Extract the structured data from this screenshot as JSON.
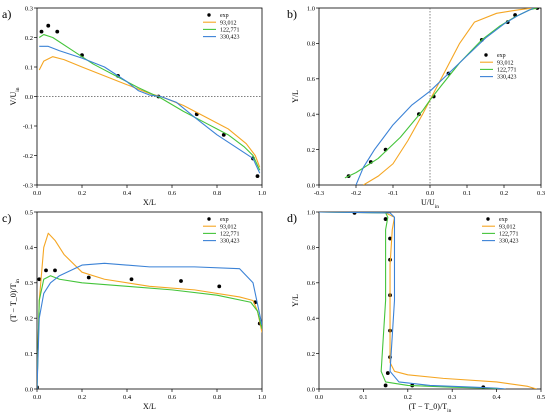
{
  "colors": {
    "exp": "#000000",
    "93,012": "#f5a623",
    "122,771": "#44c43a",
    "330,423": "#3b82d6"
  },
  "chart_data": [
    {
      "panel": "a)",
      "type": "line",
      "xlabel": "X/L",
      "ylabel": "V/U_in",
      "xlim": [
        0,
        1.0
      ],
      "ylim": [
        -0.3,
        0.3
      ],
      "xticks": [
        "0.0",
        "0.2",
        "0.4",
        "0.6",
        "0.8",
        "1.0"
      ],
      "yticks": [
        "-0.3",
        "-0.2",
        "-0.1",
        "0.0",
        "0.1",
        "0.2",
        "0.3"
      ],
      "legend_position": "top-right",
      "reference_lines": [
        {
          "axis": "y",
          "value": 0
        }
      ],
      "series": [
        {
          "name": "exp",
          "style": "markers",
          "x": [
            0.02,
            0.05,
            0.09,
            0.2,
            0.36,
            0.54,
            0.71,
            0.83,
            0.96,
            0.98
          ],
          "y": [
            0.22,
            0.24,
            0.22,
            0.14,
            0.07,
            0.0,
            -0.06,
            -0.13,
            -0.21,
            -0.27
          ]
        },
        {
          "name": "93,012",
          "style": "line",
          "x": [
            0.01,
            0.03,
            0.07,
            0.12,
            0.2,
            0.3,
            0.4,
            0.5,
            0.55,
            0.65,
            0.75,
            0.85,
            0.93,
            0.97,
            0.99
          ],
          "y": [
            0.09,
            0.12,
            0.135,
            0.125,
            0.1,
            0.07,
            0.04,
            0.01,
            0.0,
            -0.03,
            -0.07,
            -0.11,
            -0.16,
            -0.2,
            -0.24
          ]
        },
        {
          "name": "122,771",
          "style": "line",
          "x": [
            0.01,
            0.03,
            0.07,
            0.15,
            0.25,
            0.35,
            0.45,
            0.55,
            0.65,
            0.75,
            0.85,
            0.92,
            0.96,
            0.99
          ],
          "y": [
            0.2,
            0.21,
            0.2,
            0.16,
            0.11,
            0.07,
            0.03,
            -0.005,
            -0.05,
            -0.09,
            -0.13,
            -0.17,
            -0.2,
            -0.25
          ]
        },
        {
          "name": "330,423",
          "style": "line",
          "x": [
            0.01,
            0.05,
            0.1,
            0.2,
            0.3,
            0.4,
            0.45,
            0.5,
            0.55,
            0.62,
            0.7,
            0.8,
            0.9,
            0.96,
            0.99
          ],
          "y": [
            0.17,
            0.17,
            0.155,
            0.13,
            0.1,
            0.05,
            0.02,
            0.005,
            0.0,
            -0.02,
            -0.07,
            -0.13,
            -0.18,
            -0.21,
            -0.26
          ]
        }
      ]
    },
    {
      "panel": "b)",
      "type": "line",
      "xlabel": "U/U_in",
      "ylabel": "Y/L",
      "xlim": [
        -0.3,
        0.3
      ],
      "ylim": [
        0,
        1.0
      ],
      "xticks": [
        "-0.3",
        "-0.2",
        "-0.1",
        "0.0",
        "0.1",
        "0.2",
        "0.3"
      ],
      "yticks": [
        "0.0",
        "0.2",
        "0.4",
        "0.6",
        "0.8",
        "1.0"
      ],
      "legend_position": "bottom-right",
      "reference_lines": [
        {
          "axis": "x",
          "value": 0
        }
      ],
      "series": [
        {
          "name": "exp",
          "style": "markers",
          "x": [
            -0.22,
            -0.16,
            -0.12,
            -0.03,
            0.01,
            0.05,
            0.14,
            0.21,
            0.23,
            0.29
          ],
          "y": [
            0.05,
            0.13,
            0.2,
            0.4,
            0.5,
            0.63,
            0.82,
            0.92,
            0.96,
            1.0
          ]
        },
        {
          "name": "93,012",
          "style": "line",
          "x": [
            -0.18,
            -0.14,
            -0.1,
            -0.06,
            -0.02,
            0.0,
            0.02,
            0.05,
            0.08,
            0.12,
            0.18,
            0.24,
            0.28
          ],
          "y": [
            0.0,
            0.05,
            0.12,
            0.25,
            0.4,
            0.48,
            0.56,
            0.68,
            0.8,
            0.92,
            0.97,
            0.99,
            1.0
          ]
        },
        {
          "name": "122,771",
          "style": "line",
          "x": [
            -0.23,
            -0.2,
            -0.14,
            -0.08,
            -0.02,
            0.0,
            0.03,
            0.08,
            0.14,
            0.19,
            0.23,
            0.27,
            0.29
          ],
          "y": [
            0.04,
            0.07,
            0.15,
            0.27,
            0.42,
            0.48,
            0.56,
            0.69,
            0.82,
            0.9,
            0.95,
            0.99,
            1.0
          ]
        },
        {
          "name": "330,423",
          "style": "line",
          "x": [
            -0.2,
            -0.18,
            -0.15,
            -0.1,
            -0.05,
            0.0,
            0.05,
            0.1,
            0.15,
            0.2,
            0.24,
            0.28
          ],
          "y": [
            0.0,
            0.1,
            0.2,
            0.34,
            0.45,
            0.53,
            0.63,
            0.73,
            0.83,
            0.91,
            0.96,
            1.0
          ]
        }
      ]
    },
    {
      "panel": "c)",
      "type": "line",
      "xlabel": "X/L",
      "ylabel": "(T − T_0)/T_in",
      "xlim": [
        0,
        1.0
      ],
      "ylim": [
        0,
        0.5
      ],
      "xticks": [
        "0.0",
        "0.2",
        "0.4",
        "0.6",
        "0.8",
        "1.0"
      ],
      "yticks": [
        "0.0",
        "0.1",
        "0.2",
        "0.3",
        "0.4",
        "0.5"
      ],
      "legend_position": "top-right",
      "reference_lines": [],
      "series": [
        {
          "name": "exp",
          "style": "markers",
          "x": [
            0.0,
            0.01,
            0.04,
            0.08,
            0.23,
            0.42,
            0.64,
            0.81,
            0.97,
            0.99
          ],
          "y": [
            0.005,
            0.31,
            0.335,
            0.335,
            0.315,
            0.31,
            0.305,
            0.29,
            0.245,
            0.185
          ]
        },
        {
          "name": "93,012",
          "style": "line",
          "x": [
            0.0,
            0.01,
            0.03,
            0.05,
            0.08,
            0.12,
            0.2,
            0.3,
            0.5,
            0.7,
            0.9,
            0.96,
            0.98,
            1.0
          ],
          "y": [
            0.0,
            0.25,
            0.4,
            0.44,
            0.42,
            0.38,
            0.33,
            0.31,
            0.29,
            0.28,
            0.26,
            0.25,
            0.22,
            0.16
          ]
        },
        {
          "name": "122,771",
          "style": "line",
          "x": [
            0.0,
            0.01,
            0.03,
            0.06,
            0.1,
            0.2,
            0.4,
            0.6,
            0.8,
            0.95,
            0.98,
            1.0
          ],
          "y": [
            0.0,
            0.25,
            0.31,
            0.32,
            0.31,
            0.3,
            0.29,
            0.28,
            0.265,
            0.245,
            0.22,
            0.17
          ]
        },
        {
          "name": "330,423",
          "style": "line",
          "x": [
            0.0,
            0.01,
            0.03,
            0.06,
            0.1,
            0.2,
            0.3,
            0.5,
            0.7,
            0.9,
            0.96,
            0.98,
            1.0
          ],
          "y": [
            0.0,
            0.2,
            0.27,
            0.3,
            0.32,
            0.35,
            0.355,
            0.345,
            0.345,
            0.34,
            0.3,
            0.24,
            0.18
          ]
        }
      ]
    },
    {
      "panel": "d)",
      "type": "line",
      "xlabel": "(T − T_0)/T_in",
      "ylabel": "Y/L",
      "xlim": [
        0,
        0.5
      ],
      "ylim": [
        0,
        1.0
      ],
      "xticks": [
        "0.0",
        "0.1",
        "0.2",
        "0.3",
        "0.4",
        "0.5"
      ],
      "yticks": [
        "0.0",
        "0.2",
        "0.4",
        "0.6",
        "0.8",
        "1.0"
      ],
      "legend_position": "top-right",
      "reference_lines": [],
      "series": [
        {
          "name": "exp",
          "style": "markers",
          "x": [
            0.08,
            0.15,
            0.16,
            0.16,
            0.16,
            0.16,
            0.16,
            0.155,
            0.15,
            0.21,
            0.37
          ],
          "y": [
            0.995,
            0.96,
            0.85,
            0.73,
            0.53,
            0.33,
            0.18,
            0.09,
            0.02,
            0.02,
            0.01
          ]
        },
        {
          "name": "93,012",
          "style": "line",
          "x": [
            0.0,
            0.15,
            0.17,
            0.165,
            0.16,
            0.16,
            0.16,
            0.16,
            0.17,
            0.2,
            0.28,
            0.4,
            0.47,
            0.49
          ],
          "y": [
            1.0,
            0.995,
            0.97,
            0.9,
            0.7,
            0.5,
            0.3,
            0.15,
            0.1,
            0.08,
            0.06,
            0.04,
            0.015,
            0.0
          ]
        },
        {
          "name": "122,771",
          "style": "line",
          "x": [
            0.0,
            0.15,
            0.155,
            0.15,
            0.15,
            0.15,
            0.145,
            0.14,
            0.15,
            0.2,
            0.3,
            0.38,
            0.42
          ],
          "y": [
            1.0,
            0.995,
            0.97,
            0.9,
            0.7,
            0.5,
            0.3,
            0.1,
            0.04,
            0.02,
            0.01,
            0.005,
            0.0
          ]
        },
        {
          "name": "330,423",
          "style": "line",
          "x": [
            0.0,
            0.16,
            0.17,
            0.17,
            0.17,
            0.17,
            0.165,
            0.16,
            0.18,
            0.25,
            0.35,
            0.4,
            0.42
          ],
          "y": [
            1.0,
            0.995,
            0.97,
            0.9,
            0.7,
            0.5,
            0.3,
            0.1,
            0.04,
            0.02,
            0.01,
            0.005,
            0.0
          ]
        }
      ]
    }
  ]
}
